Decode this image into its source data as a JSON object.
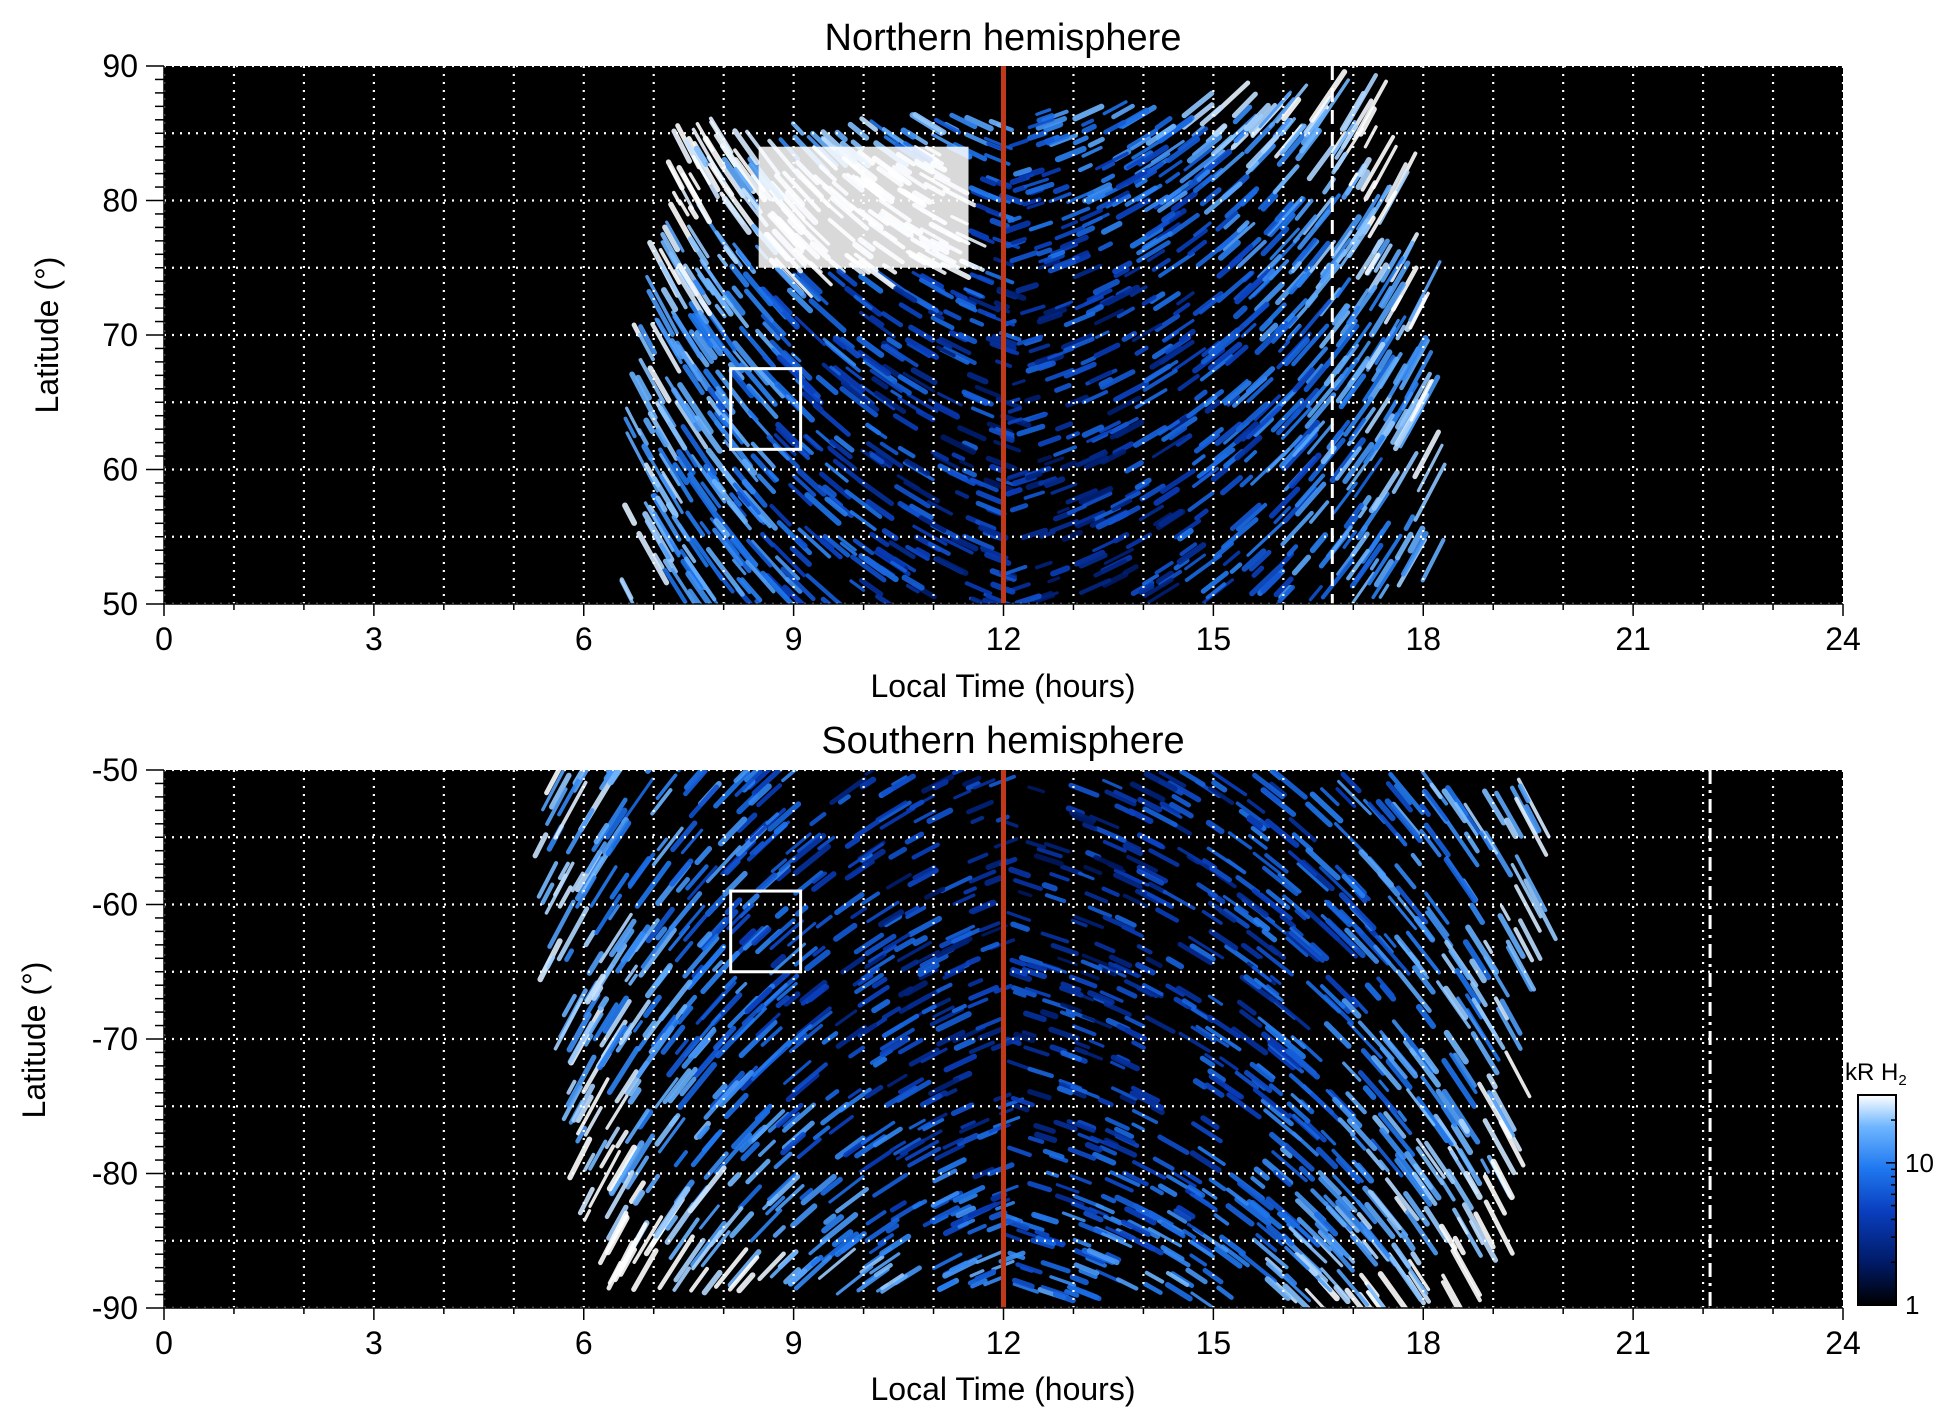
{
  "chart_data": [
    {
      "type": "heatmap",
      "title": "Northern hemisphere",
      "xlabel": "Local Time (hours)",
      "ylabel": "Latitude (°)",
      "xlim": [
        0,
        24
      ],
      "ylim": [
        50,
        90
      ],
      "xticks": [
        "0",
        "3",
        "6",
        "9",
        "12",
        "15",
        "18",
        "21",
        "24"
      ],
      "yticks": [
        "50",
        "60",
        "70",
        "80",
        "90"
      ],
      "grid": "dotted white, every 1 hour and 5 degrees",
      "background": "black",
      "emission_extent_hours": [
        6.5,
        18.0
      ],
      "emission_max_latitude": 86.5,
      "bright_patch": {
        "lt_range": [
          8.5,
          11.5
        ],
        "lat_range": [
          75,
          84
        ]
      },
      "reference_line": {
        "x": 12,
        "color": "#c0391b",
        "style": "solid"
      },
      "dashed_line": {
        "x": 16.7,
        "color": "#ffffff",
        "style": "dashed"
      },
      "box": {
        "lt_range": [
          8.1,
          9.1
        ],
        "lat_range": [
          61.5,
          67.5
        ]
      }
    },
    {
      "type": "heatmap",
      "title": "Southern hemisphere",
      "xlabel": "Local Time (hours)",
      "ylabel": "Latitude (°)",
      "xlim": [
        0,
        24
      ],
      "ylim": [
        -90,
        -50
      ],
      "xticks": [
        "0",
        "3",
        "6",
        "9",
        "12",
        "15",
        "18",
        "21",
        "24"
      ],
      "yticks": [
        "-50",
        "-60",
        "-70",
        "-80",
        "-90"
      ],
      "grid": "dotted white, every 1 hour and 5 degrees",
      "background": "black",
      "emission_extent_hours": [
        5.3,
        19.5
      ],
      "emission_max_latitude": -89,
      "reference_line": {
        "x": 12,
        "color": "#c0391b",
        "style": "solid"
      },
      "dashed_line": {
        "x": 22.1,
        "color": "#ffffff",
        "style": "dash-dot"
      },
      "box": {
        "lt_range": [
          8.1,
          9.1
        ],
        "lat_range": [
          -65,
          -59
        ]
      }
    }
  ],
  "colorbar": {
    "title_main": "kR H",
    "title_sub": "2",
    "scale": "log",
    "range": [
      1,
      30
    ],
    "ticks": [
      {
        "value": 1,
        "label": "1"
      },
      {
        "value": 10,
        "label": "10"
      }
    ],
    "colors": [
      "#000000",
      "#001a66",
      "#0a3fc0",
      "#1f78f0",
      "#6fb6ff",
      "#ffffff"
    ]
  }
}
